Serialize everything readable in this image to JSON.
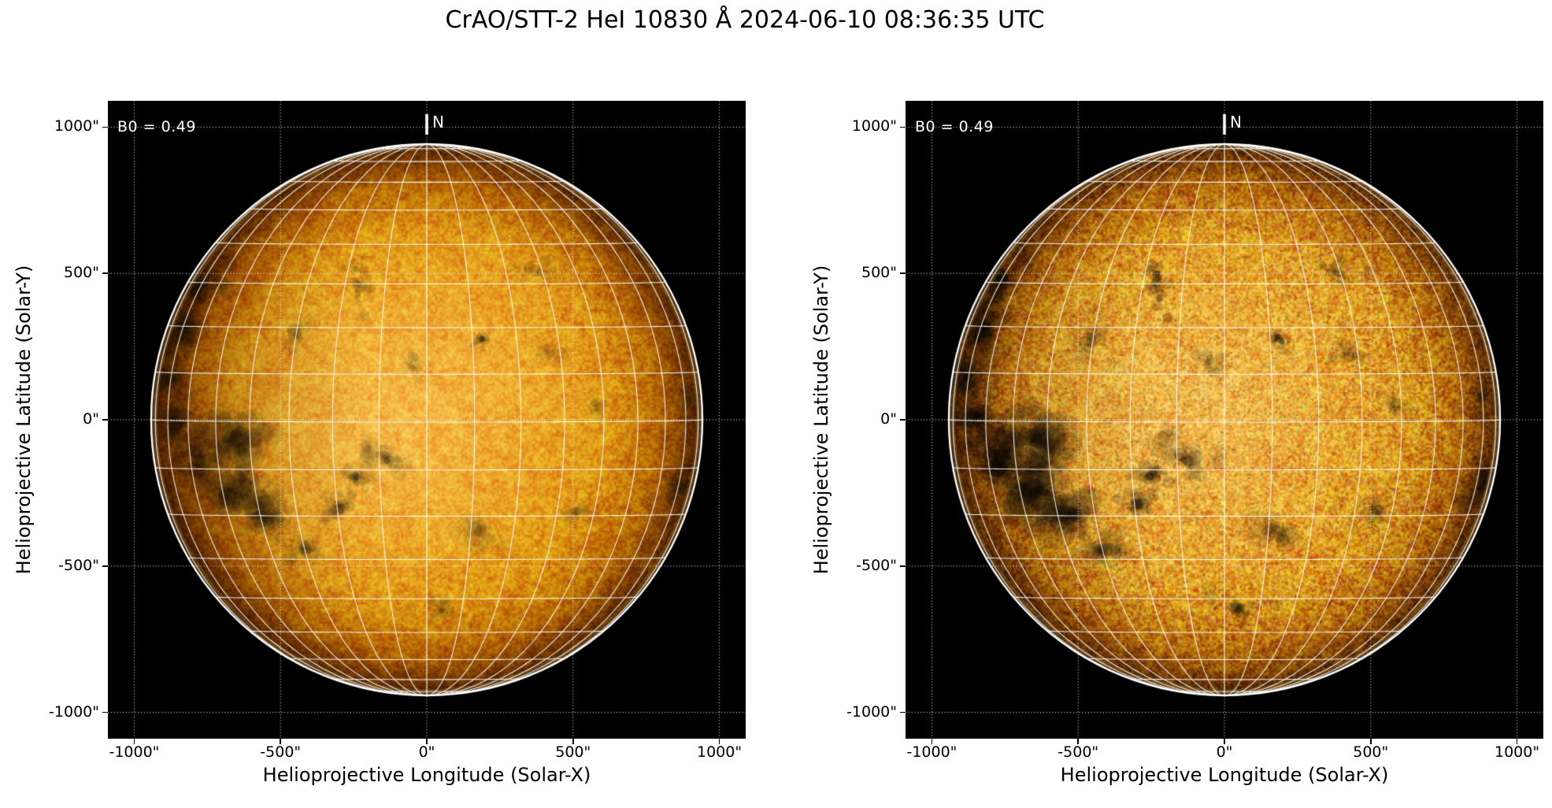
{
  "title": "CrAO/STT-2 HeI 10830 Å 2024-06-10 08:36:35 UTC",
  "colors": {
    "page_background": "#ffffff",
    "panel_background": "#000000",
    "grid_line": "#ffffff",
    "limb_circle": "#ffffff",
    "disk_center": "#f2ac2e",
    "disk_limb": "#7a4d04",
    "dark_feature": "#201503",
    "annotation_text": "#ffffff",
    "axis_text": "#000000"
  },
  "axes": {
    "x_label": "Helioprojective Longitude (Solar-X)",
    "y_label": "Helioprojective Latitude (Solar-Y)",
    "x_tick_values": [
      -1000,
      -500,
      0,
      500,
      1000
    ],
    "x_tick_labels": [
      "-1000\"",
      "-500\"",
      "0\"",
      "500\"",
      "1000\""
    ],
    "y_tick_values": [
      1000,
      500,
      0,
      -500,
      -1000
    ],
    "y_tick_labels": [
      "1000\"",
      "500\"",
      "0\"",
      "-500\"",
      "-1000\""
    ],
    "xlim_arcsec": [
      -1090,
      1090
    ],
    "ylim_arcsec": [
      -1090,
      1090
    ]
  },
  "panels": [
    {
      "annotation": "B0 = 0.49",
      "north_label": "N",
      "style": "smooth",
      "description": "He I 10830 Å full-disk intensity image"
    },
    {
      "annotation": "B0 = 0.49",
      "north_label": "N",
      "style": "enhanced",
      "description": "He I 10830 Å contrast-enhanced full-disk image"
    }
  ],
  "chart_data": {
    "type": "heatmap",
    "title": "CrAO/STT-2 HeI 10830 Å 2024-06-10 08:36:35 UTC",
    "observatory": "CrAO/STT-2",
    "line": "HeI",
    "wavelength_angstrom": 10830,
    "datetime_utc": "2024-06-10 08:36:35",
    "b0_deg": 0.49,
    "solar_radius_arcsec": 945,
    "grid_spacing_deg": 10,
    "legend_position": "none",
    "grid": "heliographic 10° white solid; axis grid dotted at ±1000\", ±500\", 0\"",
    "panels": [
      {
        "name": "left",
        "style": "smooth",
        "xlim": [
          -1090,
          1090
        ],
        "ylim": [
          -1090,
          1090
        ],
        "x_ticks": [
          -1000,
          -500,
          0,
          500,
          1000
        ],
        "y_ticks": [
          1000,
          500,
          0,
          -500,
          -1000
        ],
        "annotations": [
          {
            "text": "B0 = 0.49",
            "pos": "top-left"
          },
          {
            "text": "N",
            "pos": "north-pole"
          }
        ]
      },
      {
        "name": "right",
        "style": "contrast-enhanced",
        "xlim": [
          -1090,
          1090
        ],
        "ylim": [
          -1090,
          1090
        ],
        "x_ticks": [
          -1000,
          -500,
          0,
          500,
          1000
        ],
        "y_ticks": [
          1000,
          500,
          0,
          -500,
          -1000
        ],
        "annotations": [
          {
            "text": "B0 = 0.49",
            "pos": "top-left"
          },
          {
            "text": "N",
            "pos": "north-pole"
          }
        ]
      }
    ],
    "features": [
      {
        "x": -0.82,
        "y": -0.49,
        "r": 0.1,
        "elong": 1.6,
        "angle": 120,
        "strength": 0.85
      },
      {
        "x": -0.88,
        "y": -0.32,
        "r": 0.09,
        "elong": 1.4,
        "angle": 100,
        "strength": 0.9
      },
      {
        "x": -0.93,
        "y": -0.16,
        "r": 0.08,
        "elong": 1.2,
        "angle": 90,
        "strength": 0.85
      },
      {
        "x": -0.9,
        "y": 0.0,
        "r": 0.09,
        "elong": 1.3,
        "angle": 80,
        "strength": 0.9
      },
      {
        "x": -0.83,
        "y": 0.16,
        "r": 0.1,
        "elong": 1.4,
        "angle": 70,
        "strength": 1.0
      },
      {
        "x": -0.7,
        "y": 0.26,
        "r": 0.12,
        "elong": 1.3,
        "angle": 30,
        "strength": 1.0
      },
      {
        "x": -0.58,
        "y": 0.34,
        "r": 0.1,
        "elong": 1.2,
        "angle": 20,
        "strength": 0.85
      },
      {
        "x": -0.69,
        "y": 0.08,
        "r": 0.13,
        "elong": 1.2,
        "angle": 0,
        "strength": 0.95
      },
      {
        "x": -0.25,
        "y": -0.5,
        "r": 0.05,
        "elong": 3.2,
        "angle": 78,
        "strength": 1.0
      },
      {
        "x": 0.39,
        "y": -0.54,
        "r": 0.05,
        "elong": 2.6,
        "angle": 8,
        "strength": 0.7
      },
      {
        "x": 0.2,
        "y": -0.29,
        "r": 0.04,
        "elong": 1.2,
        "angle": 0,
        "strength": 0.95
      },
      {
        "x": 0.45,
        "y": -0.24,
        "r": 0.05,
        "elong": 1.5,
        "angle": 20,
        "strength": 0.5
      },
      {
        "x": -0.15,
        "y": 0.14,
        "r": 0.07,
        "elong": 2.1,
        "angle": 25,
        "strength": 0.8
      },
      {
        "x": -0.26,
        "y": 0.2,
        "r": 0.06,
        "elong": 1.4,
        "angle": 0,
        "strength": 0.9
      },
      {
        "x": -0.31,
        "y": 0.31,
        "r": 0.06,
        "elong": 1.3,
        "angle": -20,
        "strength": 0.85
      },
      {
        "x": -0.43,
        "y": 0.47,
        "r": 0.07,
        "elong": 1.5,
        "angle": 10,
        "strength": 0.7
      },
      {
        "x": 0.92,
        "y": 0.25,
        "r": 0.08,
        "elong": 1.8,
        "angle": 115,
        "strength": 0.75
      },
      {
        "x": 0.94,
        "y": -0.08,
        "r": 0.06,
        "elong": 1.6,
        "angle": 95,
        "strength": 0.5
      },
      {
        "x": 0.05,
        "y": 0.68,
        "r": 0.06,
        "elong": 2.2,
        "angle": 5,
        "strength": 0.6
      },
      {
        "x": 0.18,
        "y": 0.4,
        "r": 0.07,
        "elong": 1.8,
        "angle": 30,
        "strength": 0.55
      },
      {
        "x": 0.55,
        "y": 0.33,
        "r": 0.06,
        "elong": 1.5,
        "angle": -15,
        "strength": 0.5
      },
      {
        "x": -0.05,
        "y": -0.2,
        "r": 0.05,
        "elong": 1.6,
        "angle": 40,
        "strength": 0.45
      },
      {
        "x": 0.62,
        "y": -0.05,
        "r": 0.05,
        "elong": 1.4,
        "angle": 60,
        "strength": 0.4
      },
      {
        "x": -0.48,
        "y": -0.3,
        "r": 0.06,
        "elong": 1.6,
        "angle": 120,
        "strength": 0.5
      }
    ]
  }
}
